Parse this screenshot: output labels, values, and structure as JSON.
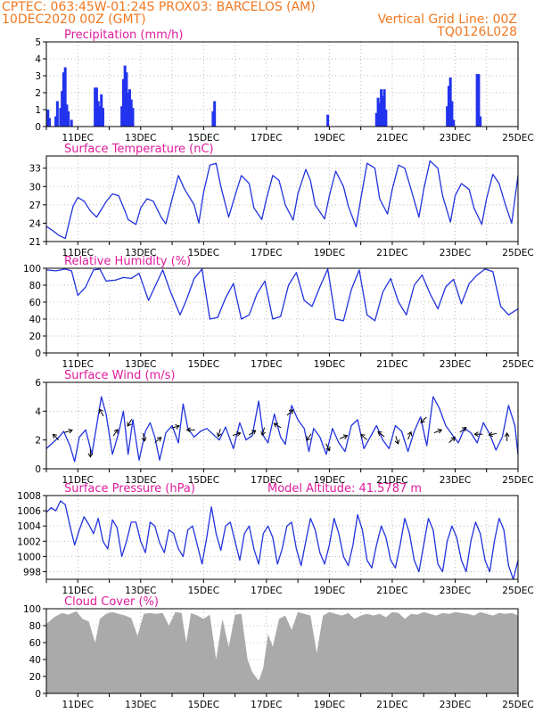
{
  "header": {
    "line1": "CPTEC:   063:45W-01:24S   PROX03: BARCELOS (AM)",
    "line2": "10DEC2020 00Z (GMT)",
    "grid_note": "Vertical Grid Line: 00Z",
    "code": "TQ0126L028"
  },
  "colors": {
    "header": "#f07820",
    "title": "#e01c9c",
    "line": "#2233dd",
    "bar": "#2233ee",
    "cloud": "#aaaaaa",
    "grid": "#bbbbbb",
    "arrow": "#000000"
  },
  "x_axis": {
    "tick_labels": [
      "11DEC",
      "13DEC",
      "15DEC",
      "17DEC",
      "19DEC",
      "21DEC",
      "23DEC",
      "25DEC"
    ],
    "x_range_days": [
      10,
      25
    ]
  },
  "chart_data": [
    {
      "id": "precip",
      "type": "bar",
      "title": "Precipitation (mm/h)",
      "ylim": [
        0,
        5
      ],
      "yticks": [
        0,
        1,
        2,
        3,
        4,
        5
      ],
      "x": [
        10.05,
        10.1,
        10.3,
        10.35,
        10.45,
        10.5,
        10.55,
        10.6,
        10.65,
        10.7,
        10.8,
        11.55,
        11.6,
        11.65,
        11.7,
        11.75,
        11.8,
        12.4,
        12.45,
        12.5,
        12.55,
        12.6,
        12.65,
        12.7,
        12.75,
        15.3,
        15.35,
        18.95,
        20.5,
        20.55,
        20.6,
        20.65,
        20.7,
        20.75,
        20.8,
        22.75,
        22.8,
        22.85,
        22.9,
        22.95,
        23.7,
        23.75,
        23.8
      ],
      "values": [
        1.0,
        0.5,
        0.6,
        1.5,
        1.1,
        2.1,
        3.2,
        3.5,
        1.3,
        0.9,
        0.4,
        2.3,
        2.3,
        1.5,
        1.2,
        1.9,
        1.1,
        1.2,
        2.8,
        3.6,
        3.2,
        2.0,
        2.2,
        1.6,
        1.1,
        0.9,
        1.5,
        0.7,
        0.8,
        1.7,
        1.4,
        2.2,
        1.8,
        2.2,
        1.0,
        1.2,
        2.4,
        2.9,
        1.5,
        0.4,
        3.1,
        3.1,
        0.6
      ]
    },
    {
      "id": "temp",
      "type": "line",
      "title": "Surface Temperature (nC)",
      "ylim": [
        21,
        35
      ],
      "yticks": [
        21,
        24,
        27,
        30,
        33
      ],
      "x": [
        10.0,
        10.2,
        10.4,
        10.6,
        10.85,
        11.0,
        11.2,
        11.4,
        11.6,
        11.9,
        12.1,
        12.3,
        12.5,
        12.6,
        12.85,
        13.0,
        13.2,
        13.4,
        13.65,
        13.8,
        14.0,
        14.2,
        14.4,
        14.7,
        14.85,
        15.0,
        15.2,
        15.4,
        15.55,
        15.8,
        16.0,
        16.2,
        16.45,
        16.6,
        16.85,
        17.0,
        17.2,
        17.4,
        17.6,
        17.85,
        18.0,
        18.25,
        18.4,
        18.55,
        18.85,
        19.0,
        19.2,
        19.45,
        19.6,
        19.85,
        20.0,
        20.2,
        20.45,
        20.6,
        20.85,
        21.0,
        21.2,
        21.4,
        21.6,
        21.85,
        22.0,
        22.2,
        22.45,
        22.6,
        22.85,
        23.0,
        23.2,
        23.45,
        23.6,
        23.85,
        24.0,
        24.2,
        24.4,
        24.6,
        24.8,
        25.0
      ],
      "values": [
        23.5,
        22.8,
        22.0,
        21.5,
        26.8,
        28.2,
        27.6,
        26.0,
        25.0,
        27.5,
        28.8,
        28.5,
        26.0,
        24.6,
        23.8,
        26.5,
        28.0,
        27.6,
        25.0,
        23.9,
        28.0,
        31.8,
        29.5,
        27.0,
        24.0,
        29.0,
        33.5,
        33.8,
        30.0,
        25.0,
        28.5,
        31.8,
        30.5,
        26.5,
        24.6,
        28.0,
        31.8,
        31.0,
        27.0,
        24.5,
        28.8,
        32.8,
        31.0,
        27.0,
        24.7,
        28.5,
        32.5,
        30.0,
        26.8,
        23.4,
        28.0,
        33.8,
        33.0,
        28.0,
        25.5,
        29.5,
        33.5,
        33.0,
        29.5,
        25.0,
        29.5,
        34.2,
        33.0,
        28.5,
        24.2,
        28.5,
        30.5,
        29.5,
        26.5,
        23.8,
        28.0,
        32.0,
        30.5,
        27.0,
        24.0,
        31.8
      ]
    },
    {
      "id": "rh",
      "type": "line",
      "title": "Relative Humidity (%)",
      "ylim": [
        0,
        100
      ],
      "yticks": [
        0,
        20,
        40,
        60,
        80,
        100
      ],
      "x": [
        10.0,
        10.3,
        10.6,
        10.8,
        11.0,
        11.25,
        11.5,
        11.7,
        11.9,
        12.2,
        12.45,
        12.7,
        12.95,
        13.25,
        13.5,
        13.7,
        13.95,
        14.25,
        14.45,
        14.7,
        14.95,
        15.2,
        15.45,
        15.7,
        15.95,
        16.2,
        16.45,
        16.7,
        16.95,
        17.2,
        17.45,
        17.7,
        17.95,
        18.2,
        18.45,
        18.7,
        18.95,
        19.2,
        19.45,
        19.7,
        19.95,
        20.2,
        20.45,
        20.7,
        20.95,
        21.2,
        21.45,
        21.7,
        21.95,
        22.2,
        22.45,
        22.7,
        22.95,
        23.2,
        23.45,
        23.7,
        23.95,
        24.2,
        24.45,
        24.7,
        25.0
      ],
      "values": [
        98,
        97,
        99,
        97,
        68,
        78,
        98,
        99,
        85,
        86,
        89,
        88,
        94,
        62,
        82,
        98,
        72,
        45,
        62,
        88,
        99,
        40,
        42,
        65,
        82,
        40,
        45,
        70,
        85,
        40,
        43,
        80,
        95,
        62,
        55,
        78,
        99,
        40,
        38,
        75,
        98,
        45,
        38,
        72,
        88,
        60,
        45,
        80,
        92,
        70,
        52,
        78,
        87,
        58,
        82,
        92,
        99,
        96,
        55,
        45,
        52
      ]
    },
    {
      "id": "wind",
      "type": "line",
      "title": "Surface Wind (m/s)",
      "ylim": [
        0,
        6
      ],
      "yticks": [
        0,
        2,
        4,
        6
      ],
      "x": [
        10.0,
        10.2,
        10.4,
        10.55,
        10.75,
        10.9,
        11.05,
        11.25,
        11.45,
        11.6,
        11.75,
        11.9,
        12.1,
        12.3,
        12.45,
        12.6,
        12.75,
        12.95,
        13.15,
        13.3,
        13.45,
        13.6,
        13.8,
        14.0,
        14.2,
        14.35,
        14.5,
        14.7,
        14.9,
        15.1,
        15.3,
        15.5,
        15.7,
        15.95,
        16.15,
        16.35,
        16.55,
        16.75,
        16.9,
        17.05,
        17.25,
        17.45,
        17.6,
        17.8,
        18.0,
        18.2,
        18.35,
        18.5,
        18.7,
        18.9,
        19.1,
        19.3,
        19.5,
        19.7,
        19.9,
        20.1,
        20.3,
        20.5,
        20.7,
        20.9,
        21.1,
        21.3,
        21.5,
        21.7,
        21.9,
        22.1,
        22.3,
        22.5,
        22.7,
        22.9,
        23.1,
        23.3,
        23.5,
        23.7,
        23.9,
        24.1,
        24.3,
        24.5,
        24.7,
        24.9,
        25.0
      ],
      "values": [
        1.4,
        1.8,
        2.2,
        2.6,
        1.6,
        0.5,
        2.2,
        2.7,
        1.0,
        3.0,
        5.0,
        3.8,
        1.0,
        2.5,
        4.0,
        1.0,
        3.4,
        0.6,
        2.6,
        3.2,
        2.2,
        0.6,
        2.5,
        3.0,
        1.8,
        4.5,
        2.8,
        2.2,
        2.6,
        2.8,
        2.4,
        2.0,
        2.9,
        1.4,
        3.2,
        2.0,
        2.3,
        4.7,
        2.3,
        1.8,
        3.8,
        2.2,
        1.7,
        4.4,
        3.4,
        2.8,
        1.2,
        2.8,
        2.2,
        1.0,
        2.8,
        1.8,
        1.2,
        3.0,
        3.4,
        1.4,
        2.2,
        3.0,
        2.0,
        1.4,
        3.0,
        2.6,
        1.2,
        2.6,
        3.6,
        1.6,
        5.0,
        4.2,
        3.0,
        2.4,
        1.8,
        2.8,
        2.5,
        1.8,
        3.2,
        2.4,
        1.3,
        2.2,
        4.4,
        3.0,
        1.0
      ]
    },
    {
      "id": "pres",
      "type": "line",
      "title": "Surface Pressure (hPa)",
      "annotation": "Model Altitude: 41.5787  m",
      "ylim": [
        997,
        1008
      ],
      "yticks": [
        998,
        1000,
        1002,
        1004,
        1006,
        1008
      ],
      "x": [
        10.0,
        10.15,
        10.3,
        10.45,
        10.6,
        10.75,
        10.9,
        11.05,
        11.2,
        11.35,
        11.5,
        11.65,
        11.8,
        11.95,
        12.1,
        12.25,
        12.4,
        12.55,
        12.7,
        12.85,
        13.0,
        13.15,
        13.3,
        13.45,
        13.6,
        13.75,
        13.9,
        14.05,
        14.2,
        14.35,
        14.5,
        14.65,
        14.8,
        14.95,
        15.1,
        15.25,
        15.4,
        15.55,
        15.7,
        15.85,
        16.0,
        16.15,
        16.3,
        16.45,
        16.6,
        16.75,
        16.9,
        17.05,
        17.2,
        17.35,
        17.5,
        17.65,
        17.8,
        17.95,
        18.1,
        18.25,
        18.4,
        18.55,
        18.7,
        18.85,
        19.0,
        19.15,
        19.3,
        19.45,
        19.6,
        19.75,
        19.9,
        20.05,
        20.2,
        20.35,
        20.5,
        20.65,
        20.8,
        20.95,
        21.1,
        21.25,
        21.4,
        21.55,
        21.7,
        21.85,
        22.0,
        22.15,
        22.3,
        22.45,
        22.6,
        22.75,
        22.9,
        23.05,
        23.2,
        23.35,
        23.5,
        23.65,
        23.8,
        23.95,
        24.1,
        24.25,
        24.4,
        24.55,
        24.7,
        24.85,
        25.0
      ],
      "values": [
        1005.8,
        1006.4,
        1006.0,
        1007.3,
        1006.8,
        1004.0,
        1001.5,
        1003.5,
        1005.2,
        1004.2,
        1003.0,
        1005.0,
        1002.0,
        1001.0,
        1004.8,
        1003.8,
        1000.0,
        1002.0,
        1004.5,
        1004.5,
        1002.0,
        1000.5,
        1004.5,
        1004.0,
        1001.8,
        1000.5,
        1003.5,
        1003.0,
        1001.0,
        1000.0,
        1003.5,
        1004.0,
        1001.5,
        999.0,
        1002.5,
        1006.5,
        1003.0,
        1000.8,
        1004.0,
        1004.5,
        1002.0,
        999.5,
        1003.0,
        1004.0,
        1001.0,
        999.0,
        1003.0,
        1004.0,
        1002.5,
        999.0,
        1001.0,
        1004.0,
        1004.5,
        1001.0,
        998.8,
        1002.0,
        1005.0,
        1003.5,
        1000.5,
        999.0,
        1001.5,
        1005.0,
        1003.0,
        1000.0,
        998.8,
        1001.5,
        1005.5,
        1003.5,
        999.5,
        998.5,
        1001.5,
        1004.0,
        1002.5,
        999.5,
        998.5,
        1001.5,
        1005.0,
        1003.0,
        999.5,
        998.0,
        1001.5,
        1005.0,
        1003.5,
        999.0,
        998.0,
        1002.0,
        1004.0,
        1002.5,
        999.5,
        998.0,
        1002.0,
        1004.5,
        1003.0,
        999.5,
        998.0,
        1002.0,
        1005.0,
        1003.5,
        998.8,
        997.0,
        999.5
      ]
    },
    {
      "id": "cloud",
      "type": "area",
      "title": "Cloud Cover (%)",
      "ylim": [
        0,
        100
      ],
      "yticks": [
        0,
        20,
        40,
        60,
        80,
        100
      ],
      "x": [
        10.0,
        10.25,
        10.5,
        10.7,
        10.95,
        11.15,
        11.35,
        11.55,
        11.7,
        11.9,
        12.1,
        12.3,
        12.5,
        12.7,
        12.9,
        13.1,
        13.3,
        13.5,
        13.7,
        13.9,
        14.1,
        14.3,
        14.45,
        14.6,
        14.8,
        15.0,
        15.2,
        15.4,
        15.6,
        15.8,
        16.0,
        16.2,
        16.4,
        16.55,
        16.75,
        16.9,
        17.05,
        17.2,
        17.4,
        17.6,
        17.8,
        18.0,
        18.2,
        18.4,
        18.6,
        18.8,
        19.0,
        19.2,
        19.4,
        19.6,
        19.8,
        20.0,
        20.2,
        20.4,
        20.6,
        20.8,
        21.0,
        21.2,
        21.4,
        21.6,
        21.8,
        22.0,
        22.2,
        22.4,
        22.6,
        22.8,
        23.0,
        23.2,
        23.4,
        23.6,
        23.8,
        24.0,
        24.2,
        24.4,
        24.6,
        24.8,
        25.0
      ],
      "values": [
        82,
        90,
        95,
        93,
        97,
        88,
        85,
        60,
        88,
        94,
        96,
        94,
        92,
        89,
        68,
        94,
        95,
        94,
        95,
        80,
        96,
        95,
        60,
        95,
        92,
        88,
        93,
        40,
        88,
        55,
        93,
        94,
        40,
        25,
        15,
        30,
        70,
        55,
        88,
        92,
        75,
        96,
        94,
        92,
        48,
        92,
        96,
        94,
        92,
        95,
        88,
        92,
        94,
        92,
        94,
        90,
        96,
        95,
        88,
        94,
        93,
        96,
        94,
        92,
        95,
        94,
        96,
        95,
        94,
        92,
        96,
        94,
        92,
        95,
        94,
        95,
        92
      ]
    }
  ],
  "wind_arrows": [
    {
      "day": 10.3,
      "speed": 2.2,
      "dx": -1,
      "dy": 1
    },
    {
      "day": 10.7,
      "speed": 2.6,
      "dx": 1,
      "dy": 0.3
    },
    {
      "day": 11.4,
      "speed": 1.1,
      "dx": 0,
      "dy": -1
    },
    {
      "day": 11.75,
      "speed": 3.9,
      "dx": -0.6,
      "dy": 1
    },
    {
      "day": 12.2,
      "speed": 2.5,
      "dx": 0.7,
      "dy": 1
    },
    {
      "day": 12.65,
      "speed": 3.2,
      "dx": -0.6,
      "dy": -1
    },
    {
      "day": 13.1,
      "speed": 2.2,
      "dx": 0.2,
      "dy": -1
    },
    {
      "day": 13.55,
      "speed": 2.0,
      "dx": 1,
      "dy": 0.8
    },
    {
      "day": 14.1,
      "speed": 2.9,
      "dx": 1,
      "dy": 0.3
    },
    {
      "day": 14.6,
      "speed": 2.7,
      "dx": -1,
      "dy": 0
    },
    {
      "day": 15.5,
      "speed": 2.5,
      "dx": -0.3,
      "dy": -1
    },
    {
      "day": 16.05,
      "speed": 2.4,
      "dx": 1,
      "dy": 0.3
    },
    {
      "day": 16.55,
      "speed": 2.5,
      "dx": 1,
      "dy": 0.7
    },
    {
      "day": 16.9,
      "speed": 2.6,
      "dx": -0.3,
      "dy": -1
    },
    {
      "day": 17.35,
      "speed": 3.0,
      "dx": -1,
      "dy": 0.6
    },
    {
      "day": 17.75,
      "speed": 3.9,
      "dx": 1,
      "dy": 0.9
    },
    {
      "day": 18.35,
      "speed": 2.2,
      "dx": -0.7,
      "dy": -1
    },
    {
      "day": 18.95,
      "speed": 1.5,
      "dx": 0.5,
      "dy": -1
    },
    {
      "day": 19.45,
      "speed": 2.2,
      "dx": 1,
      "dy": 0.4
    },
    {
      "day": 20.1,
      "speed": 2.2,
      "dx": -0.9,
      "dy": 0.8
    },
    {
      "day": 20.65,
      "speed": 2.4,
      "dx": -1,
      "dy": 0.8
    },
    {
      "day": 21.15,
      "speed": 2.0,
      "dx": 0.3,
      "dy": -1
    },
    {
      "day": 21.55,
      "speed": 2.3,
      "dx": 0.4,
      "dy": 1
    },
    {
      "day": 22.0,
      "speed": 3.4,
      "dx": -0.9,
      "dy": -0.9
    },
    {
      "day": 22.45,
      "speed": 2.6,
      "dx": 1,
      "dy": 0.4
    },
    {
      "day": 22.9,
      "speed": 2.0,
      "dx": 1,
      "dy": 0.9
    },
    {
      "day": 23.25,
      "speed": 2.7,
      "dx": 1,
      "dy": 0.8
    },
    {
      "day": 23.75,
      "speed": 2.4,
      "dx": -1,
      "dy": 0
    },
    {
      "day": 24.2,
      "speed": 2.4,
      "dx": -1,
      "dy": -0.2
    },
    {
      "day": 24.65,
      "speed": 2.2,
      "dx": 0,
      "dy": 1
    }
  ]
}
